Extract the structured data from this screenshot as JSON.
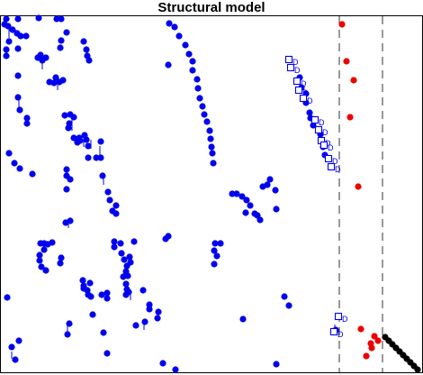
{
  "chart_data": {
    "type": "scatter",
    "title": "Structural model",
    "xlabel": "",
    "ylabel": "",
    "grid": false,
    "legend": "none",
    "colors": {
      "blue": "#0000ee",
      "red": "#ee0000",
      "black": "#000000"
    },
    "separators_x": [
      377,
      425
    ],
    "series": [
      {
        "color": "#0000ee",
        "marker": "circle",
        "points": [
          [
            7,
            21
          ],
          [
            20,
            21
          ],
          [
            43,
            20
          ],
          [
            63,
            21
          ],
          [
            68,
            21
          ],
          [
            5,
            27
          ],
          [
            9,
            29
          ],
          [
            14,
            33
          ],
          [
            19,
            37
          ],
          [
            23,
            40
          ],
          [
            29,
            40
          ],
          [
            10,
            46
          ],
          [
            7,
            55
          ],
          [
            7,
            62
          ],
          [
            20,
            54
          ],
          [
            47,
            67
          ],
          [
            51,
            64
          ],
          [
            45,
            61
          ],
          [
            42,
            64
          ],
          [
            68,
            45
          ],
          [
            67,
            53
          ],
          [
            74,
            36
          ],
          [
            93,
            46
          ],
          [
            96,
            55
          ],
          [
            97,
            62
          ],
          [
            99,
            67
          ],
          [
            62,
            86
          ],
          [
            55,
            91
          ],
          [
            60,
            92
          ],
          [
            66,
            91
          ],
          [
            70,
            89
          ],
          [
            20,
            84
          ],
          [
            20,
            108
          ],
          [
            22,
            122
          ],
          [
            30,
            131
          ],
          [
            30,
            137
          ],
          [
            72,
            128
          ],
          [
            78,
            127
          ],
          [
            82,
            130
          ],
          [
            77,
            137
          ],
          [
            76,
            142
          ],
          [
            82,
            153
          ],
          [
            88,
            153
          ],
          [
            94,
            150
          ],
          [
            96,
            155
          ],
          [
            86,
            158
          ],
          [
            89,
            156
          ],
          [
            98,
            162
          ],
          [
            98,
            175
          ],
          [
            107,
            175
          ],
          [
            112,
            175
          ],
          [
            112,
            157
          ],
          [
            10,
            170
          ],
          [
            16,
            181
          ],
          [
            22,
            187
          ],
          [
            36,
            193
          ],
          [
            74,
            188
          ],
          [
            74,
            195
          ],
          [
            78,
            199
          ],
          [
            74,
            210
          ],
          [
            114,
            195
          ],
          [
            120,
            213
          ],
          [
            122,
            222
          ],
          [
            129,
            228
          ],
          [
            125,
            234
          ],
          [
            129,
            237
          ],
          [
            73,
            247
          ],
          [
            78,
            245
          ],
          [
            45,
            270
          ],
          [
            49,
            270
          ],
          [
            53,
            271
          ],
          [
            58,
            269
          ],
          [
            49,
            277
          ],
          [
            44,
            283
          ],
          [
            44,
            289
          ],
          [
            46,
            296
          ],
          [
            51,
            300
          ],
          [
            68,
            286
          ],
          [
            67,
            292
          ],
          [
            92,
            311
          ],
          [
            93,
            317
          ],
          [
            93,
            320
          ],
          [
            97,
            322
          ],
          [
            98,
            327
          ],
          [
            100,
            314
          ],
          [
            101,
            329
          ],
          [
            113,
            327
          ],
          [
            119,
            325
          ],
          [
            119,
            331
          ],
          [
            103,
            349
          ],
          [
            127,
            268
          ],
          [
            127,
            274
          ],
          [
            134,
            270
          ],
          [
            149,
            268
          ],
          [
            135,
            281
          ],
          [
            138,
            288
          ],
          [
            141,
            295
          ],
          [
            144,
            285
          ],
          [
            145,
            291
          ],
          [
            140,
            301
          ],
          [
            142,
            306
          ],
          [
            137,
            307
          ],
          [
            140,
            315
          ],
          [
            141,
            321
          ],
          [
            140,
            327
          ],
          [
            143,
            324
          ],
          [
            159,
            322
          ],
          [
            166,
            338
          ],
          [
            166,
            343
          ],
          [
            176,
            346
          ],
          [
            175,
            353
          ],
          [
            187,
            262
          ],
          [
            184,
            265
          ],
          [
            187,
            72
          ],
          [
            188,
            26
          ],
          [
            194,
            30
          ],
          [
            199,
            40
          ],
          [
            206,
            50
          ],
          [
            210,
            60
          ],
          [
            214,
            68
          ],
          [
            214,
            78
          ],
          [
            219,
            88
          ],
          [
            220,
            98
          ],
          [
            222,
            109
          ],
          [
            225,
            118
          ],
          [
            227,
            127
          ],
          [
            230,
            135
          ],
          [
            233,
            145
          ],
          [
            234,
            154
          ],
          [
            235,
            163
          ],
          [
            236,
            170
          ],
          [
            237,
            181
          ],
          [
            239,
            270
          ],
          [
            238,
            278
          ],
          [
            241,
            284
          ],
          [
            238,
            293
          ],
          [
            245,
            270
          ],
          [
            258,
            215
          ],
          [
            263,
            215
          ],
          [
            269,
            218
          ],
          [
            274,
            222
          ],
          [
            278,
            228
          ],
          [
            273,
            236
          ],
          [
            283,
            237
          ],
          [
            289,
            244
          ],
          [
            286,
            239
          ],
          [
            292,
            207
          ],
          [
            300,
            199
          ],
          [
            297,
            205
          ],
          [
            306,
            211
          ],
          [
            307,
            232
          ],
          [
            316,
            329
          ],
          [
            321,
            339
          ],
          [
            333,
            86
          ],
          [
            335,
            97
          ],
          [
            340,
            104
          ],
          [
            340,
            114
          ],
          [
            344,
            125
          ],
          [
            345,
            131
          ],
          [
            348,
            139
          ],
          [
            356,
            149
          ],
          [
            359,
            163
          ],
          [
            361,
            172
          ],
          [
            8,
            330
          ],
          [
            21,
            378
          ],
          [
            13,
            385
          ],
          [
            17,
            399
          ],
          [
            77,
            359
          ],
          [
            75,
            371
          ],
          [
            115,
            369
          ],
          [
            119,
            392
          ],
          [
            151,
            361
          ],
          [
            161,
            357
          ],
          [
            181,
            403
          ],
          [
            195,
            410
          ],
          [
            270,
            354
          ],
          [
            307,
            404
          ],
          [
            373,
            366
          ]
        ]
      },
      {
        "color": "#0000ee",
        "marker": "square-D",
        "points": [
          [
            321,
            66
          ],
          [
            323,
            75
          ],
          [
            330,
            90
          ],
          [
            332,
            100
          ],
          [
            337,
            109
          ],
          [
            350,
            133
          ],
          [
            354,
            144
          ],
          [
            357,
            156
          ],
          [
            360,
            161
          ],
          [
            365,
            176
          ],
          [
            368,
            185
          ],
          [
            376,
            351
          ],
          [
            371,
            368
          ]
        ]
      },
      {
        "color": "#ee0000",
        "marker": "circle",
        "points": [
          [
            380,
            27
          ],
          [
            385,
            68
          ],
          [
            393,
            89
          ],
          [
            389,
            130
          ],
          [
            398,
            207
          ],
          [
            401,
            365
          ],
          [
            416,
            373
          ],
          [
            420,
            378
          ],
          [
            412,
            381
          ],
          [
            407,
            395
          ],
          [
            413,
            386
          ]
        ]
      },
      {
        "color": "#000000",
        "marker": "circle",
        "points": [
          [
            428,
            374
          ],
          [
            432,
            378
          ],
          [
            436,
            382
          ],
          [
            440,
            386
          ],
          [
            444,
            390
          ],
          [
            448,
            394
          ],
          [
            452,
            398
          ],
          [
            456,
            402
          ],
          [
            460,
            406
          ],
          [
            464,
            410
          ]
        ]
      }
    ],
    "stems": [
      [
        10,
        30,
        42
      ],
      [
        47,
        70,
        77
      ],
      [
        64,
        91,
        100
      ],
      [
        21,
        110,
        121
      ],
      [
        30,
        130,
        140
      ],
      [
        80,
        130,
        145
      ],
      [
        93,
        153,
        163
      ],
      [
        101,
        155,
        165
      ],
      [
        111,
        162,
        174
      ],
      [
        115,
        195,
        205
      ],
      [
        76,
        245,
        253
      ],
      [
        145,
        325,
        333
      ],
      [
        176,
        345,
        353
      ],
      [
        13,
        390,
        398
      ],
      [
        75,
        360,
        370
      ],
      [
        160,
        356,
        366
      ],
      [
        372,
        360,
        371
      ]
    ]
  }
}
